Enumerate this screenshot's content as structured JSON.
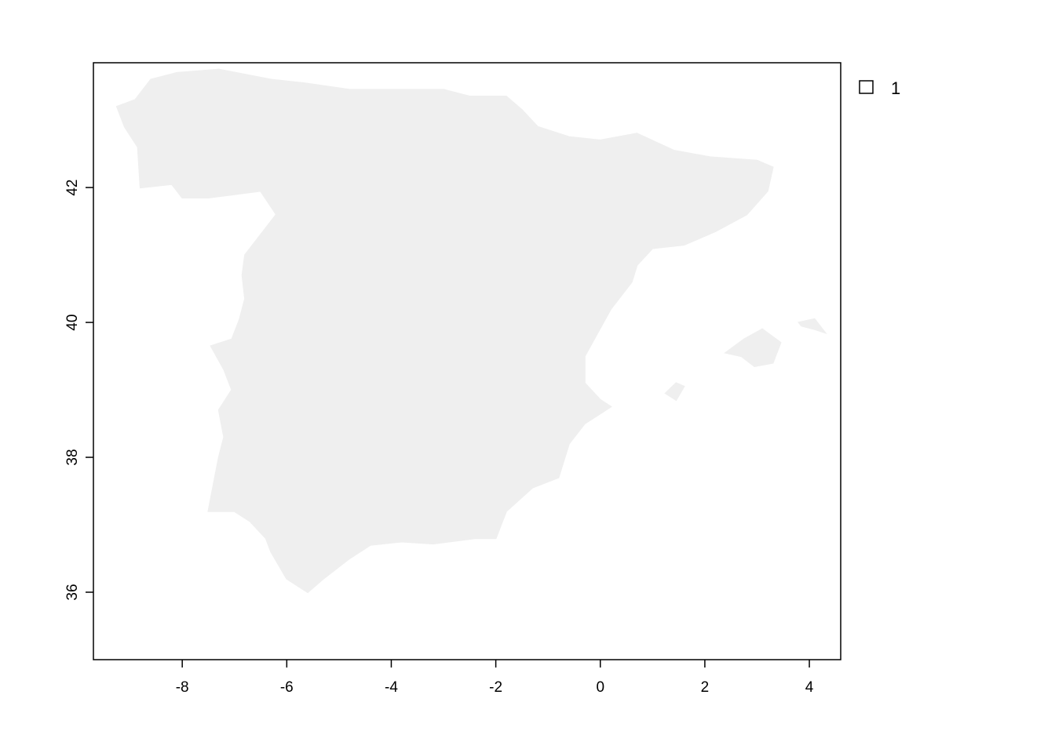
{
  "map": {
    "type": "raster",
    "x_axis": {
      "range": [
        -9.7,
        4.6
      ],
      "ticks": [
        "-8",
        "-6",
        "-4",
        "-2",
        "0",
        "2",
        "4"
      ]
    },
    "y_axis": {
      "range": [
        35.0,
        43.85
      ],
      "ticks": [
        "36",
        "38",
        "40",
        "42"
      ]
    },
    "land_color": "#efefef",
    "frame_color": "#000000",
    "legend": {
      "placement": "top-right",
      "items": [
        {
          "label": "1",
          "swatch_color": "#ffffff"
        }
      ]
    },
    "regions": [
      {
        "name": "iberian-peninsula",
        "outline": [
          [
            -8.6,
            43.6
          ],
          [
            -8.1,
            43.7
          ],
          [
            -7.3,
            43.75
          ],
          [
            -6.3,
            43.6
          ],
          [
            -5.7,
            43.55
          ],
          [
            -4.8,
            43.45
          ],
          [
            -3.8,
            43.45
          ],
          [
            -3.0,
            43.45
          ],
          [
            -2.5,
            43.35
          ],
          [
            -1.8,
            43.35
          ],
          [
            -1.5,
            43.15
          ],
          [
            -1.2,
            42.9
          ],
          [
            -0.6,
            42.75
          ],
          [
            0.0,
            42.7
          ],
          [
            0.7,
            42.8
          ],
          [
            1.4,
            42.55
          ],
          [
            2.1,
            42.45
          ],
          [
            3.0,
            42.4
          ],
          [
            3.3,
            42.3
          ],
          [
            3.2,
            41.95
          ],
          [
            2.8,
            41.6
          ],
          [
            2.2,
            41.35
          ],
          [
            1.6,
            41.15
          ],
          [
            1.0,
            41.1
          ],
          [
            0.7,
            40.85
          ],
          [
            0.6,
            40.6
          ],
          [
            0.2,
            40.2
          ],
          [
            -0.05,
            39.85
          ],
          [
            -0.3,
            39.5
          ],
          [
            -0.3,
            39.1
          ],
          [
            0.0,
            38.85
          ],
          [
            0.2,
            38.75
          ],
          [
            -0.3,
            38.5
          ],
          [
            -0.6,
            38.2
          ],
          [
            -0.8,
            37.7
          ],
          [
            -1.3,
            37.55
          ],
          [
            -1.8,
            37.2
          ],
          [
            -2.0,
            36.8
          ],
          [
            -2.4,
            36.8
          ],
          [
            -3.2,
            36.72
          ],
          [
            -3.8,
            36.75
          ],
          [
            -4.4,
            36.7
          ],
          [
            -4.8,
            36.5
          ],
          [
            -5.3,
            36.2
          ],
          [
            -5.6,
            36.0
          ],
          [
            -6.0,
            36.2
          ],
          [
            -6.3,
            36.6
          ],
          [
            -6.4,
            36.8
          ],
          [
            -6.7,
            37.05
          ],
          [
            -7.0,
            37.2
          ],
          [
            -7.5,
            37.2
          ],
          [
            -7.4,
            37.6
          ],
          [
            -7.3,
            38.0
          ],
          [
            -7.2,
            38.3
          ],
          [
            -7.3,
            38.7
          ],
          [
            -7.05,
            39.0
          ],
          [
            -7.2,
            39.3
          ],
          [
            -7.45,
            39.65
          ],
          [
            -7.05,
            39.75
          ],
          [
            -6.9,
            40.05
          ],
          [
            -6.8,
            40.35
          ],
          [
            -6.85,
            40.7
          ],
          [
            -6.8,
            41.0
          ],
          [
            -6.4,
            41.4
          ],
          [
            -6.2,
            41.6
          ],
          [
            -6.5,
            41.95
          ],
          [
            -7.0,
            41.9
          ],
          [
            -7.5,
            41.85
          ],
          [
            -8.0,
            41.85
          ],
          [
            -8.2,
            42.05
          ],
          [
            -8.8,
            42.0
          ],
          [
            -8.85,
            42.6
          ],
          [
            -9.1,
            42.9
          ],
          [
            -9.25,
            43.2
          ],
          [
            -8.9,
            43.3
          ]
        ]
      },
      {
        "name": "mallorca",
        "outline": [
          [
            2.4,
            39.55
          ],
          [
            2.75,
            39.75
          ],
          [
            3.1,
            39.9
          ],
          [
            3.45,
            39.7
          ],
          [
            3.3,
            39.4
          ],
          [
            2.95,
            39.35
          ],
          [
            2.7,
            39.5
          ]
        ]
      },
      {
        "name": "menorca",
        "outline": [
          [
            3.8,
            40.0
          ],
          [
            4.1,
            40.05
          ],
          [
            4.3,
            39.85
          ],
          [
            4.1,
            39.9
          ],
          [
            3.85,
            39.95
          ]
        ]
      },
      {
        "name": "ibiza",
        "outline": [
          [
            1.25,
            38.95
          ],
          [
            1.45,
            39.1
          ],
          [
            1.6,
            39.05
          ],
          [
            1.45,
            38.85
          ]
        ]
      }
    ]
  }
}
